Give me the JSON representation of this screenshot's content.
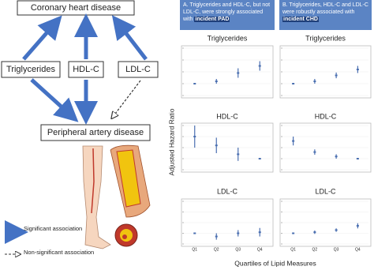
{
  "diagram": {
    "nodes": [
      {
        "label": "Coronary heart disease"
      },
      {
        "label": "Triglycerides"
      },
      {
        "label": "HDL-C"
      },
      {
        "label": "LDL-C"
      },
      {
        "label": "Peripheral artery disease"
      }
    ],
    "legend": [
      {
        "label": "Significant association"
      },
      {
        "label": "Non-significant association"
      }
    ]
  },
  "figure": {
    "panels": [
      {
        "text": "A. Triglycerides and HDL-C, but not LDL-C, were strongly associated with",
        "bold": "incident PAD"
      },
      {
        "text": "B. Triglycerides, HDL-C and LDL-C were robustly associated with",
        "bold": "incident CHD"
      }
    ],
    "y_label": "Adjusted Hazard Ratio",
    "x_label": "Quartiles of Lipid Measures"
  },
  "chart_data": [
    {
      "type": "errorbar",
      "title": "Triglycerides",
      "categories": [
        null,
        null,
        null,
        null
      ],
      "values": [
        1,
        1.1,
        1.45,
        1.75
      ],
      "errors": [
        0,
        0.1,
        0.2,
        0.2
      ],
      "color": "#4a6fb0",
      "ylim": [
        0.5,
        2.5
      ],
      "yticks": [
        0.5,
        1,
        1.5,
        2,
        2.5
      ]
    },
    {
      "type": "errorbar",
      "title": "Triglycerides",
      "categories": [
        null,
        null,
        null,
        null
      ],
      "values": [
        1,
        1.1,
        1.35,
        1.6
      ],
      "errors": [
        0,
        0.1,
        0.12,
        0.15
      ],
      "color": "#4a6fb0",
      "ylim": [
        0.5,
        2.5
      ],
      "yticks": [
        0.5,
        1,
        1.5,
        2,
        2.5
      ]
    },
    {
      "type": "errorbar",
      "title": "HDL-C",
      "categories": [
        null,
        null,
        null,
        null
      ],
      "values": [
        2,
        1.6,
        1.2,
        1
      ],
      "errors": [
        0.5,
        0.35,
        0.3,
        0
      ],
      "color": "#4a6fb0",
      "ylim": [
        0.5,
        2.5
      ],
      "yticks": [
        0.5,
        1,
        1.5,
        2,
        2.5
      ]
    },
    {
      "type": "errorbar",
      "title": "HDL-C",
      "categories": [
        null,
        null,
        null,
        null
      ],
      "values": [
        1.8,
        1.3,
        1.1,
        1
      ],
      "errors": [
        0.2,
        0.12,
        0.1,
        0
      ],
      "color": "#4a6fb0",
      "ylim": [
        0.5,
        2.5
      ],
      "yticks": [
        0.5,
        1,
        1.5,
        2,
        2.5
      ]
    },
    {
      "type": "errorbar",
      "title": "LDL-C",
      "categories": [
        "Q1",
        "Q2",
        "Q3",
        "Q4"
      ],
      "values": [
        1,
        0.85,
        1,
        1.05
      ],
      "errors": [
        0,
        0.15,
        0.15,
        0.2
      ],
      "color": "#4a6fb0",
      "ylim": [
        0.5,
        2.5
      ],
      "yticks": [
        0.5,
        1,
        1.5,
        2,
        2.5
      ]
    },
    {
      "type": "errorbar",
      "title": "LDL-C",
      "categories": [
        "Q1",
        "Q2",
        "Q3",
        "Q4"
      ],
      "values": [
        1,
        1.05,
        1.15,
        1.35
      ],
      "errors": [
        0,
        0.08,
        0.08,
        0.12
      ],
      "color": "#4a6fb0",
      "ylim": [
        0.5,
        2.5
      ],
      "yticks": [
        0.5,
        1,
        1.5,
        2,
        2.5
      ]
    }
  ]
}
